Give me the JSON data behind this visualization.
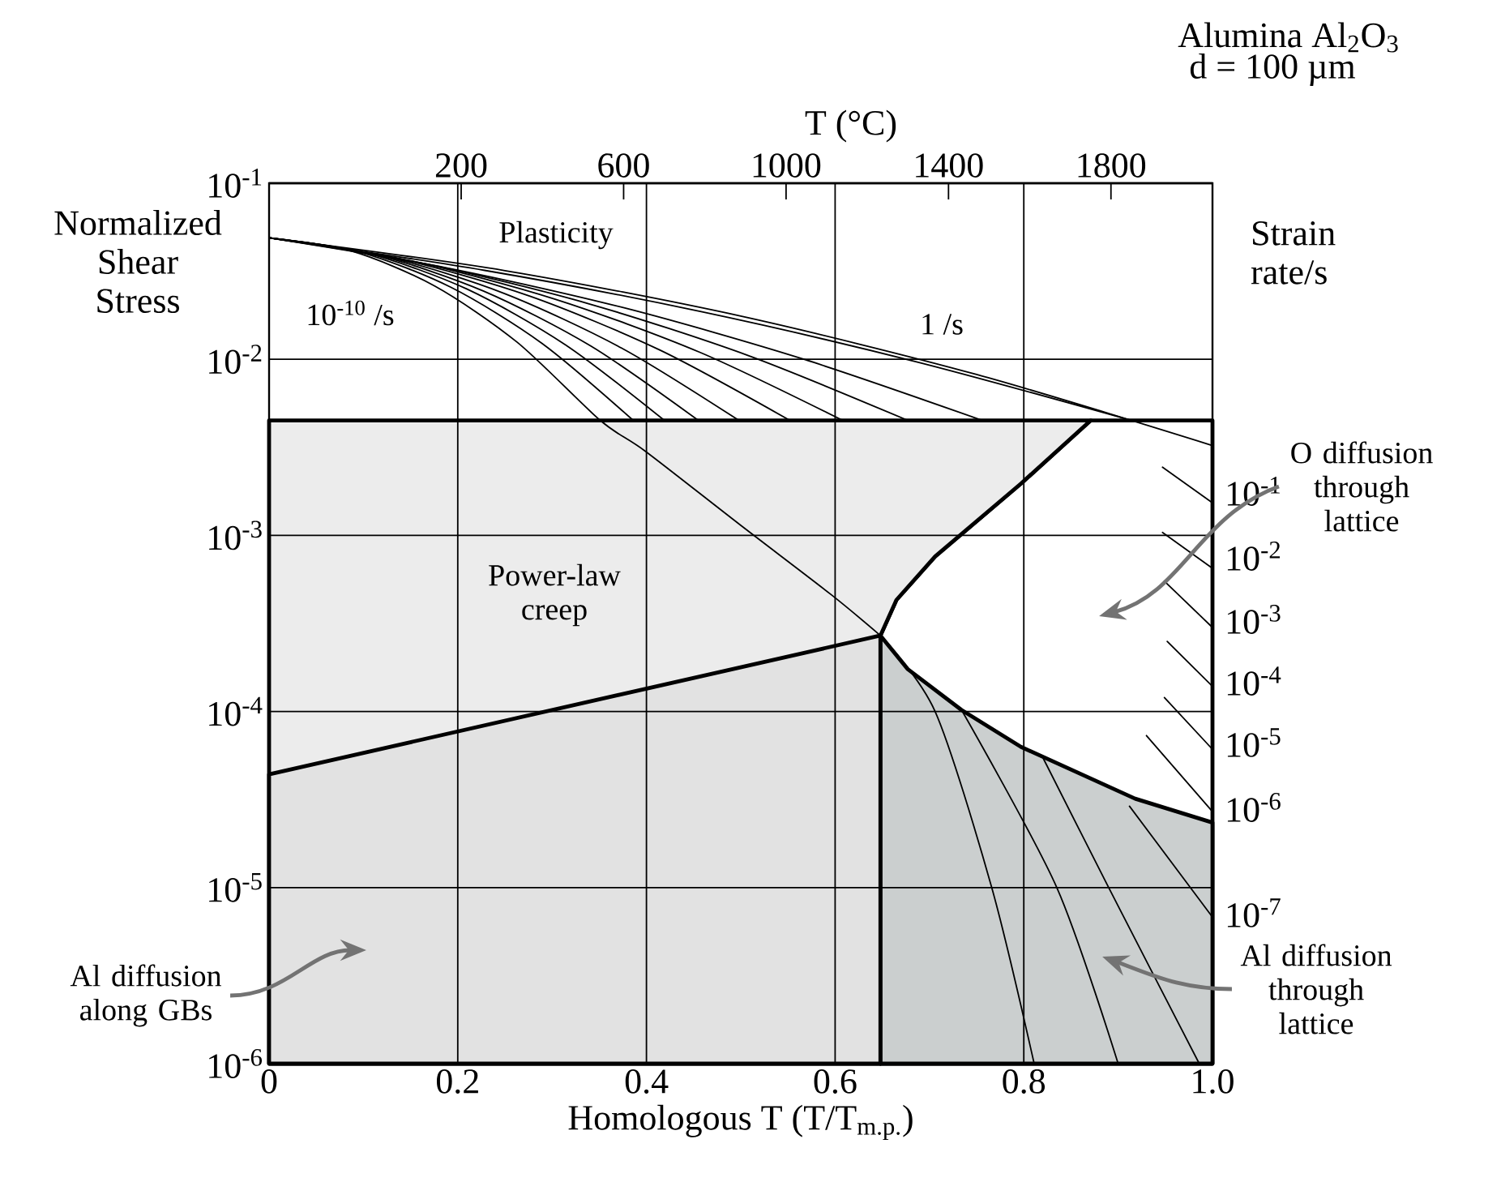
{
  "chart_data": {
    "type": "line",
    "title": "Alumina Al$_{2}$O$_{3}$",
    "subtitle": "d = 100 µm",
    "xlabel": "Homologous T (T/T$_{m.p.}$)",
    "ylabel": "Normalized Shear Stress",
    "x2label": "T (°C)",
    "xlim": [
      0,
      1
    ],
    "xticks": [
      0,
      0.2,
      0.4,
      0.6,
      0.8,
      {
        "value": 1,
        "label": "1.0"
      }
    ],
    "ylim": [
      1e-06,
      0.1
    ],
    "yticks": [
      {
        "value": 0.1,
        "label": "10$^{-1}$"
      },
      {
        "value": 0.01,
        "label": "10$^{-2}$"
      },
      {
        "value": 0.001,
        "label": "10$^{-3}$"
      },
      {
        "value": 0.0001,
        "label": "10$^{-4}$"
      },
      {
        "value": 1e-05,
        "label": "10$^{-5}$"
      },
      {
        "value": 1e-06,
        "label": "10$^{-6}$"
      }
    ],
    "x2lim": [
      -273,
      2050
    ],
    "x2ticks": [
      200,
      600,
      1000,
      1400,
      1800
    ],
    "log": "y",
    "grid": true,
    "annotations": [
      "Plasticity",
      "10$^{-10}$ /s",
      "1 /s",
      "Power-law creep",
      "Strain rate/s",
      "10$^{-1}$",
      "10$^{-2}$",
      "10$^{-3}$",
      "10$^{-4}$",
      "10$^{-5}$",
      "10$^{-6}$",
      "10$^{-7}$",
      "O diffusion through lattice",
      "Al diffusion through lattice",
      "Al diffusion along GBs"
    ],
    "series": [
      {
        "type": "area",
        "color": "#ffffff",
        "x": [
          0.648,
          0.665,
          0.706,
          0.797,
          0.871,
          1.0
        ],
        "values": [
          0.00027,
          0.00043,
          0.00076,
          0.00197,
          0.0045,
          0.0045
        ]
      },
      {
        "type": "area",
        "color": "#ececec",
        "x": [
          0,
          0.871,
          0.797,
          0.706,
          0.665,
          0.648,
          0.648
        ],
        "values": [
          0.0045,
          0.0045,
          0.00197,
          0.00076,
          0.00043,
          0.00027,
          1e-06
        ]
      },
      {
        "type": "area",
        "color": "#cbcfcf",
        "x": [
          0.648,
          0.677,
          0.734,
          0.797,
          0.918,
          1.0
        ],
        "values": [
          0.00027,
          0.000174,
          0.000102,
          6.3e-05,
          3.2e-05,
          2.34e-05
        ]
      },
      {
        "type": "area",
        "color": "#e2e2e2",
        "x": [
          0,
          0.648
        ],
        "values": [
          4.4e-05,
          0.00027
        ]
      },
      {
        "color": "#000000",
        "x": [
          0,
          0.25,
          0.5,
          0.75,
          1.0
        ],
        "values": [
          0.049,
          0.0319,
          0.0176,
          0.0082,
          0.00324
        ]
      },
      {
        "color": "#000000",
        "x": [
          0,
          0.2285,
          0.457,
          0.6855,
          0.914
        ],
        "values": [
          0.049,
          0.032,
          0.0187,
          0.0097,
          0.0045
        ]
      },
      {
        "color": "#000000",
        "x": [
          0,
          0.189,
          0.378,
          0.567,
          0.756
        ],
        "values": [
          0.049,
          0.033,
          0.0195,
          0.01,
          0.0045
        ]
      },
      {
        "color": "#000000",
        "x": [
          0,
          0.169,
          0.3385,
          0.508,
          0.677
        ],
        "values": [
          0.049,
          0.0346,
          0.0207,
          0.0105,
          0.0045
        ]
      },
      {
        "color": "#000000",
        "x": [
          0,
          0.152,
          0.304,
          0.456,
          0.608
        ],
        "values": [
          0.049,
          0.0361,
          0.0219,
          0.011,
          0.0045
        ]
      },
      {
        "color": "#000000",
        "x": [
          0,
          0.138,
          0.276,
          0.414,
          0.552
        ],
        "values": [
          0.049,
          0.0372,
          0.0229,
          0.0113,
          0.0045
        ]
      },
      {
        "color": "#000000",
        "x": [
          0,
          0.1245,
          0.249,
          0.3735,
          0.498
        ],
        "values": [
          0.049,
          0.0383,
          0.0237,
          0.0116,
          0.0045
        ]
      },
      {
        "color": "#000000",
        "x": [
          0,
          0.114,
          0.2275,
          0.341,
          0.455
        ],
        "values": [
          0.049,
          0.0392,
          0.0244,
          0.0119,
          0.0045
        ]
      },
      {
        "color": "#000000",
        "x": [
          0,
          0.105,
          0.2095,
          0.314,
          0.419
        ],
        "values": [
          0.049,
          0.0399,
          0.0251,
          0.0121,
          0.0045
        ]
      },
      {
        "color": "#000000",
        "x": [
          0,
          0.0965,
          0.193,
          0.2895,
          0.386
        ],
        "values": [
          0.049,
          0.0406,
          0.0256,
          0.0123,
          0.0045
        ]
      },
      {
        "color": "#000000",
        "x": [
          0,
          0.088,
          0.1755,
          0.263,
          0.351,
          0.399,
          0.5,
          0.596,
          0.648
        ],
        "values": [
          0.049,
          0.0411,
          0.0261,
          0.0125,
          0.0045,
          0.003,
          0.00114,
          0.00046,
          0.00027
        ]
      },
      {
        "color": "#000000",
        "x": [
          0.648,
          0.706,
          0.766,
          0.811
        ],
        "values": [
          0.00027,
          0.0001,
          1e-05,
          1e-06
        ]
      },
      {
        "color": "#000000",
        "x": [
          0.734,
          0.835,
          0.9
        ],
        "values": [
          0.000102,
          1e-05,
          1e-06
        ]
      },
      {
        "color": "#000000",
        "x": [
          0.82,
          0.89,
          0.986
        ],
        "values": [
          5.5e-05,
          1e-05,
          1e-06
        ]
      },
      {
        "color": "#000000",
        "x": [
          0.912,
          1.0
        ],
        "values": [
          2.9e-05,
          6.8e-06
        ]
      },
      {
        "color": "#000000",
        "x": [
          0.947,
          1.0
        ],
        "values": [
          0.00244,
          0.00153
        ]
      },
      {
        "color": "#000000",
        "x": [
          0.947,
          1.0
        ],
        "values": [
          0.00104,
          0.00065
        ]
      },
      {
        "color": "#000000",
        "x": [
          0.949,
          1.0
        ],
        "values": [
          0.00055,
          0.0003
        ]
      },
      {
        "color": "#000000",
        "x": [
          0.952,
          1.0
        ],
        "values": [
          0.00025,
          0.000139
        ]
      },
      {
        "color": "#000000",
        "x": [
          0.949,
          1.0
        ],
        "values": [
          0.00012,
          6.1e-05
        ]
      },
      {
        "color": "#000000",
        "x": [
          0.93,
          1.0
        ],
        "values": [
          7.3e-05,
          2.7e-05
        ]
      }
    ]
  }
}
